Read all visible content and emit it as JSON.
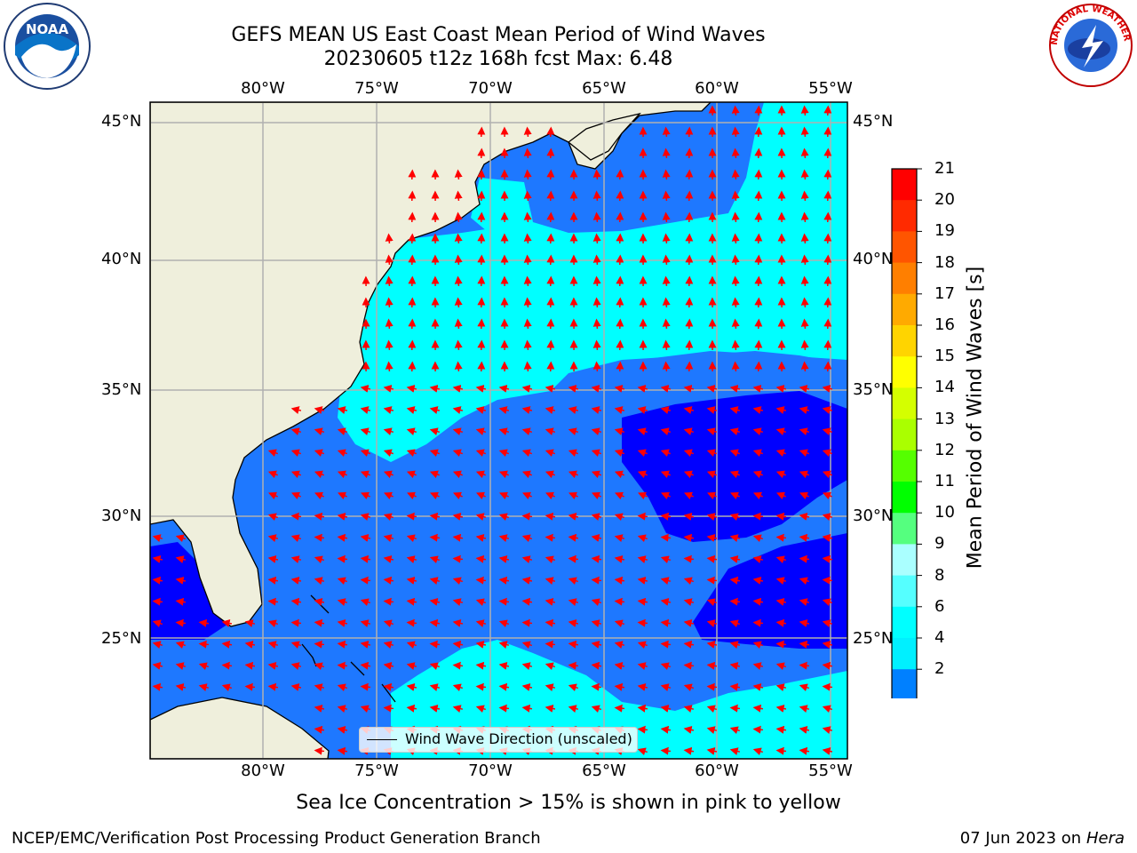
{
  "title_line1": "GEFS MEAN US East Coast Mean Period of Wind Waves",
  "title_line2": "20230605 t12z 168h fcst   Max: 6.48",
  "lon_labels": [
    "80°W",
    "75°W",
    "70°W",
    "65°W",
    "60°W",
    "55°W"
  ],
  "lat_labels": [
    "45°N",
    "40°N",
    "35°N",
    "30°N",
    "25°N"
  ],
  "legend_label": "Wind Wave Direction (unscaled)",
  "colorbar": {
    "label": "Mean Period of Wind Waves [s]",
    "ticks": [
      "21",
      "20",
      "19",
      "18",
      "17",
      "16",
      "15",
      "14",
      "13",
      "12",
      "11",
      "10",
      "9",
      "8",
      "6",
      "4",
      "2"
    ],
    "colors": [
      "#ff0000",
      "#ff2a00",
      "#ff5500",
      "#ff7f00",
      "#ffaa00",
      "#ffd400",
      "#ffff00",
      "#d4ff00",
      "#aaff00",
      "#55ff00",
      "#00ff00",
      "#55ff7f",
      "#aaffff",
      "#55ffff",
      "#00ffff",
      "#00f0ff",
      "#0080ff"
    ],
    "under_color": "#0000ff"
  },
  "note": "Sea Ice Concentration > 15% is shown in pink to yellow",
  "footer_left": "NCEP/EMC/Verification Post Processing Product Generation Branch",
  "footer_right_date": "07 Jun 2023 on",
  "footer_right_host": "Hera",
  "colors": {
    "land": "#efefdc",
    "ocean_mid": "#1e78ff",
    "ocean_light": "#00ffff",
    "ocean_dark": "#0000ff",
    "arrow": "#ff0000",
    "grid": "#b0b0b0"
  },
  "logos": {
    "left": "NOAA",
    "right": "NATIONAL WEATHER SERVICE"
  }
}
